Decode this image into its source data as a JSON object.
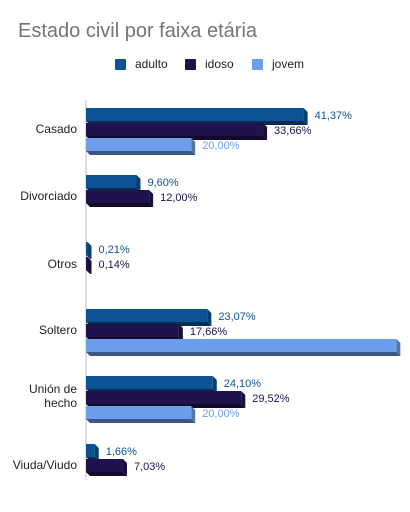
{
  "chart_data": {
    "type": "bar",
    "orientation": "horizontal",
    "title": "Estado civil por faixa etária",
    "categories": [
      "Casado",
      "Divorciado",
      "Otros",
      "Soltero",
      "Unión de hecho",
      "Viuda/Viudo"
    ],
    "category_display": [
      [
        "Casado"
      ],
      [
        "Divorciado"
      ],
      [
        "Otros"
      ],
      [
        "Soltero"
      ],
      [
        "Unión de",
        "hecho"
      ],
      [
        "Viuda/Viudo"
      ]
    ],
    "series": [
      {
        "name": "adulto",
        "color": "#0b5394",
        "label_color": "#0b5394",
        "values": [
          41.37,
          9.6,
          0.21,
          23.07,
          24.1,
          1.66
        ],
        "labels": [
          "41,37%",
          "9,60%",
          "0,21%",
          "23,07%",
          "24,10%",
          "1,66%"
        ]
      },
      {
        "name": "idoso",
        "color": "#20124d",
        "label_color": "#20124d",
        "values": [
          33.66,
          12.0,
          0.14,
          17.66,
          29.52,
          7.03
        ],
        "labels": [
          "33,66%",
          "12,00%",
          "0,14%",
          "17,66%",
          "29,52%",
          "7,03%"
        ]
      },
      {
        "name": "jovem",
        "color": "#6d9eeb",
        "label_color": "#6d9eeb",
        "values": [
          20.0,
          null,
          null,
          59.0,
          20.0,
          null
        ],
        "labels": [
          "20,00%",
          "",
          "",
          "",
          "20,00%",
          ""
        ]
      }
    ],
    "legend_position": "top",
    "grid": false,
    "style": "3d"
  }
}
